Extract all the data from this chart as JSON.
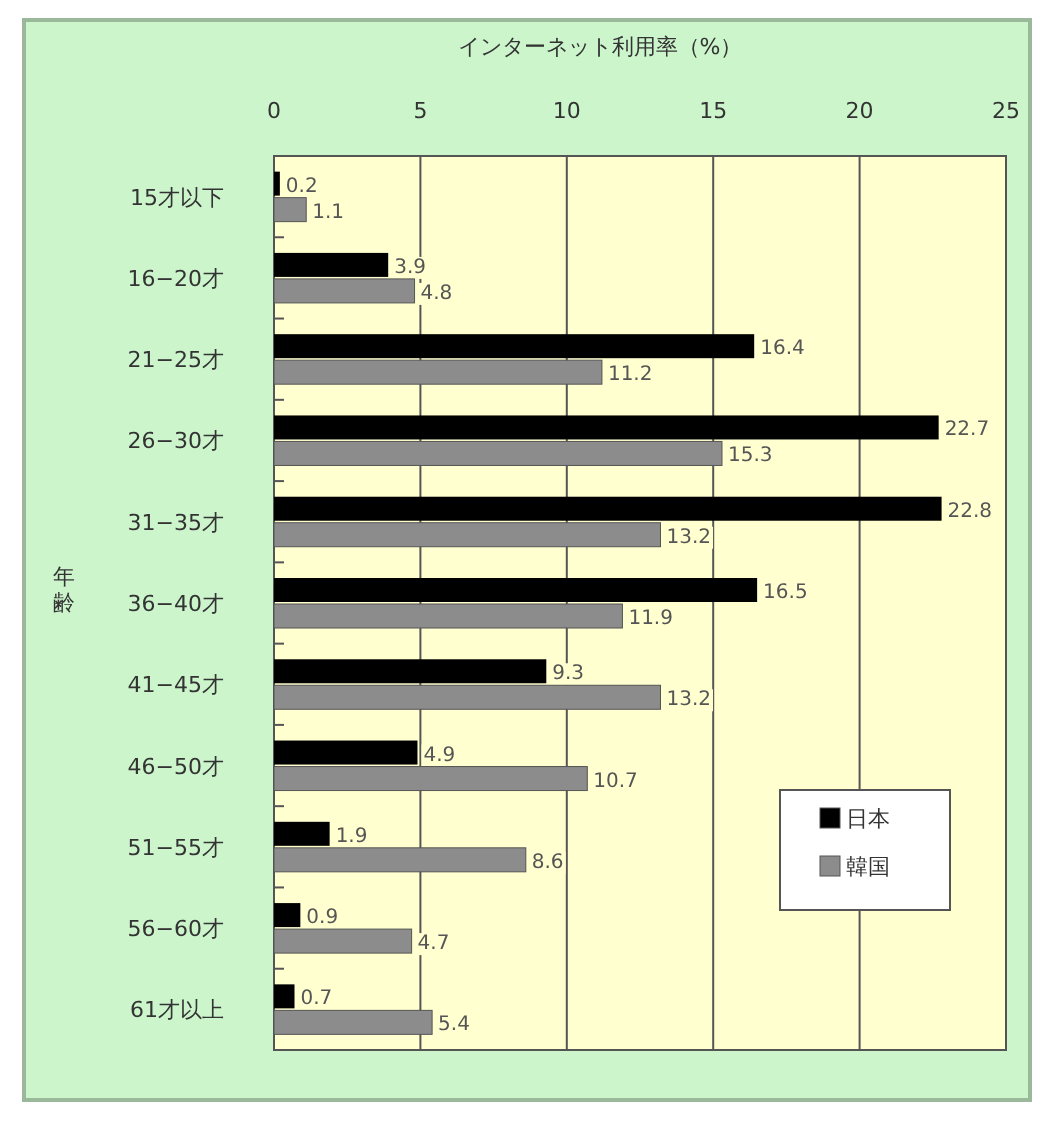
{
  "chart_data": {
    "type": "bar",
    "orientation": "horizontal",
    "title": "インターネット利用率（%）",
    "ylabel": "年齢",
    "categories": [
      "15才以下",
      "16−20才",
      "21−25才",
      "26−30才",
      "31−35才",
      "36−40才",
      "41−45才",
      "46−50才",
      "51−55才",
      "56−60才",
      "61才以上"
    ],
    "series": [
      {
        "name": "日本",
        "color": "#000000",
        "values": [
          0.2,
          3.9,
          16.4,
          22.7,
          22.8,
          16.5,
          9.3,
          4.9,
          1.9,
          0.9,
          0.7
        ]
      },
      {
        "name": "韓国",
        "color": "#8c8c8c",
        "values": [
          1.1,
          4.8,
          11.2,
          15.3,
          13.2,
          11.9,
          13.2,
          10.7,
          8.6,
          4.7,
          5.4
        ]
      }
    ],
    "xlim": [
      0,
      25
    ],
    "xticks": [
      0,
      5,
      10,
      15,
      20,
      25
    ],
    "grid": "x",
    "legend": "right",
    "data_labels": true
  }
}
